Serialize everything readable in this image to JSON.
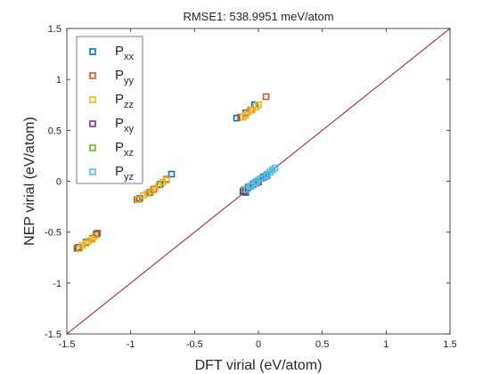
{
  "chart_data": {
    "type": "scatter",
    "title": "RMSE1: 538.9951 meV/atom",
    "xlabel": "DFT virial (eV/atom)",
    "ylabel": "NEP virial (eV/atom)",
    "xlim": [
      -1.5,
      1.5
    ],
    "ylim": [
      -1.5,
      1.5
    ],
    "x_ticks": [
      -1.5,
      -1,
      -0.5,
      0,
      0.5,
      1,
      1.5
    ],
    "y_ticks": [
      -1.5,
      -1,
      -0.5,
      0,
      0.5,
      1,
      1.5
    ],
    "x_tick_labels": [
      "-1.5",
      "-1",
      "-0.5",
      "0",
      "0.5",
      "1",
      "1.5"
    ],
    "y_tick_labels": [
      "-1.5",
      "-1",
      "-0.5",
      "0",
      "0.5",
      "1",
      "1.5"
    ],
    "grid": false,
    "legend_position": "top-left",
    "reference_line": {
      "from": [
        -1.5,
        -1.5
      ],
      "to": [
        1.5,
        1.5
      ],
      "color": "#A2142F"
    },
    "series": [
      {
        "name": "P_xx",
        "label_base": "P",
        "label_sub": "xx",
        "color": "#0072BD",
        "points": [
          [
            -1.41,
            -0.65
          ],
          [
            -1.35,
            -0.6
          ],
          [
            -1.27,
            -0.52
          ],
          [
            -0.93,
            -0.17
          ],
          [
            -0.85,
            -0.11
          ],
          [
            -0.77,
            -0.03
          ],
          [
            -0.68,
            0.07
          ],
          [
            -0.17,
            0.62
          ],
          [
            -0.1,
            0.67
          ],
          [
            -0.03,
            0.75
          ],
          [
            -0.1,
            -0.11
          ],
          [
            -0.02,
            -0.02
          ],
          [
            0.06,
            0.05
          ]
        ]
      },
      {
        "name": "P_yy",
        "label_base": "P",
        "label_sub": "yy",
        "color": "#D95319",
        "points": [
          [
            -1.42,
            -0.66
          ],
          [
            -1.3,
            -0.56
          ],
          [
            -1.26,
            -0.51
          ],
          [
            -0.95,
            -0.18
          ],
          [
            -0.82,
            -0.08
          ],
          [
            -0.72,
            0.02
          ],
          [
            -0.14,
            0.63
          ],
          [
            -0.06,
            0.7
          ],
          [
            0.06,
            0.83
          ],
          [
            -0.11,
            -0.1
          ],
          [
            0.0,
            -0.01
          ],
          [
            0.04,
            0.04
          ]
        ]
      },
      {
        "name": "P_zz",
        "label_base": "P",
        "label_sub": "zz",
        "color": "#EDB120",
        "points": [
          [
            -1.4,
            -0.66
          ],
          [
            -1.38,
            -0.63
          ],
          [
            -1.35,
            -0.61
          ],
          [
            -1.33,
            -0.59
          ],
          [
            -1.3,
            -0.57
          ],
          [
            -1.28,
            -0.54
          ],
          [
            -0.94,
            -0.18
          ],
          [
            -0.9,
            -0.14
          ],
          [
            -0.87,
            -0.12
          ],
          [
            -0.84,
            -0.1
          ],
          [
            -0.81,
            -0.07
          ],
          [
            -0.78,
            -0.04
          ],
          [
            -0.75,
            -0.01
          ],
          [
            -0.72,
            0.01
          ],
          [
            -0.12,
            0.63
          ],
          [
            -0.1,
            0.65
          ],
          [
            -0.08,
            0.68
          ],
          [
            -0.05,
            0.7
          ],
          [
            -0.02,
            0.73
          ],
          [
            0.0,
            0.75
          ]
        ]
      },
      {
        "name": "P_xy",
        "label_base": "P",
        "label_sub": "xy",
        "color": "#7E2F8E",
        "points": [
          [
            -0.12,
            -0.1
          ],
          [
            -0.08,
            -0.06
          ],
          [
            -0.04,
            -0.03
          ],
          [
            0.0,
            0.0
          ],
          [
            0.04,
            0.04
          ]
        ]
      },
      {
        "name": "P_xz",
        "label_base": "P",
        "label_sub": "xz",
        "color": "#77AC30",
        "points": [
          [
            -0.11,
            -0.08
          ],
          [
            -0.06,
            -0.05
          ],
          [
            -0.02,
            -0.01
          ],
          [
            0.03,
            0.03
          ],
          [
            0.07,
            0.06
          ]
        ]
      },
      {
        "name": "P_yz",
        "label_base": "P",
        "label_sub": "yz",
        "color": "#4DBEEE",
        "points": [
          [
            -0.09,
            -0.08
          ],
          [
            -0.07,
            -0.05
          ],
          [
            -0.05,
            -0.04
          ],
          [
            -0.03,
            -0.02
          ],
          [
            -0.01,
            0.0
          ],
          [
            0.01,
            0.02
          ],
          [
            0.03,
            0.03
          ],
          [
            0.05,
            0.05
          ],
          [
            0.07,
            0.07
          ],
          [
            0.09,
            0.09
          ],
          [
            0.11,
            0.11
          ],
          [
            0.13,
            0.13
          ]
        ]
      }
    ]
  }
}
